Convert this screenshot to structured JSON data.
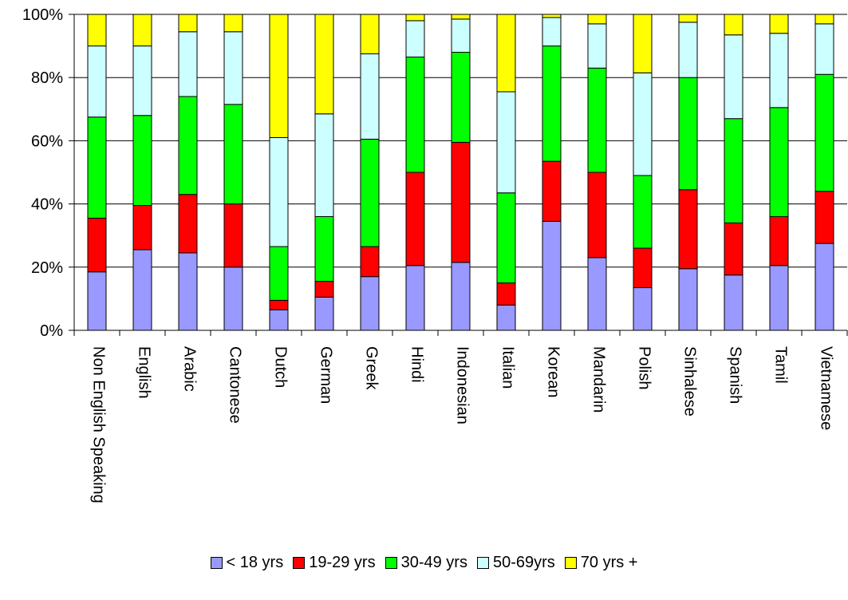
{
  "chart_data": {
    "type": "bar",
    "stacked": true,
    "percent": true,
    "categories": [
      "Non English Speaking",
      "English",
      "Arabic",
      "Cantonese",
      "Dutch",
      "German",
      "Greek",
      "Hindi",
      "Indonesian",
      "Italian",
      "Korean",
      "Mandarin",
      "Polish",
      "Sinhalese",
      "Spanish",
      "Tamil",
      "Vietnamese"
    ],
    "series": [
      {
        "name": "< 18 yrs",
        "color": "#9999ff",
        "values": [
          18.5,
          25.5,
          24.5,
          20,
          6.5,
          10.5,
          17,
          20.5,
          21.5,
          8,
          34.5,
          23,
          13.5,
          19.5,
          17.5,
          20.5,
          27.5
        ]
      },
      {
        "name": "19-29 yrs",
        "color": "#ff0000",
        "values": [
          17,
          14,
          18.5,
          20,
          3,
          5,
          9.5,
          29.5,
          38,
          7,
          19,
          27,
          12.5,
          25,
          16.5,
          15.5,
          16.5
        ]
      },
      {
        "name": "30-49 yrs",
        "color": "#00ff00",
        "values": [
          32,
          28.5,
          31,
          31.5,
          17,
          20.5,
          34,
          36.5,
          28.5,
          28.5,
          36.5,
          33,
          23,
          35.5,
          33,
          34.5,
          37
        ]
      },
      {
        "name": "50-69yrs",
        "color": "#ccffff",
        "values": [
          22.5,
          22,
          20.5,
          23,
          34.5,
          32.5,
          27,
          11.5,
          10.5,
          32,
          9,
          14,
          32.5,
          17.5,
          26.5,
          23.5,
          16
        ]
      },
      {
        "name": "70 yrs +",
        "color": "#ffff00",
        "values": [
          10,
          10,
          5.5,
          5.5,
          39,
          31.5,
          12.5,
          2,
          1.5,
          24.5,
          1,
          3,
          18.5,
          2.5,
          6.5,
          6,
          3
        ]
      }
    ],
    "yticks": [
      "0%",
      "20%",
      "40%",
      "60%",
      "80%",
      "100%"
    ],
    "ylim": [
      0,
      100
    ],
    "grid": true,
    "legend": "bottom"
  }
}
